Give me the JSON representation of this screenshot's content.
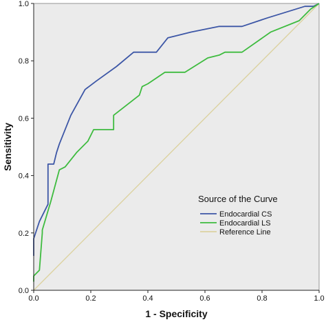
{
  "chart_data": {
    "type": "line",
    "title": "",
    "xlabel": "1 - Specificity",
    "ylabel": "Sensitivity",
    "xlim": [
      0,
      1
    ],
    "ylim": [
      0,
      1
    ],
    "x_ticks": [
      "0.0",
      "0.2",
      "0.4",
      "0.6",
      "0.8",
      "1.0"
    ],
    "y_ticks": [
      "0.0",
      "0.2",
      "0.4",
      "0.6",
      "0.8",
      "1.0"
    ],
    "grid": false,
    "background": "#ebebeb",
    "legend": {
      "title": "Source of the Curve",
      "position": "bottom-right"
    },
    "series": [
      {
        "name": "Endocardial CS",
        "color": "#3c56a6",
        "x": [
          0.0,
          0.0,
          0.02,
          0.05,
          0.05,
          0.07,
          0.08,
          0.09,
          0.13,
          0.18,
          0.22,
          0.29,
          0.35,
          0.43,
          0.47,
          0.55,
          0.65,
          0.73,
          0.82,
          0.95,
          0.98,
          1.0
        ],
        "y": [
          0.12,
          0.18,
          0.24,
          0.3,
          0.44,
          0.44,
          0.48,
          0.51,
          0.61,
          0.7,
          0.73,
          0.78,
          0.83,
          0.83,
          0.88,
          0.9,
          0.92,
          0.92,
          0.95,
          0.99,
          0.99,
          1.0
        ]
      },
      {
        "name": "Endocardial LS",
        "color": "#3dbb3e",
        "x": [
          0.0,
          0.0,
          0.02,
          0.03,
          0.03,
          0.06,
          0.09,
          0.11,
          0.15,
          0.19,
          0.21,
          0.28,
          0.28,
          0.37,
          0.38,
          0.4,
          0.46,
          0.53,
          0.61,
          0.65,
          0.67,
          0.73,
          0.83,
          0.93,
          0.97,
          1.0
        ],
        "y": [
          0.03,
          0.05,
          0.07,
          0.2,
          0.21,
          0.31,
          0.42,
          0.43,
          0.48,
          0.52,
          0.56,
          0.56,
          0.61,
          0.68,
          0.71,
          0.72,
          0.76,
          0.76,
          0.81,
          0.82,
          0.83,
          0.83,
          0.9,
          0.94,
          0.98,
          1.0
        ]
      },
      {
        "name": "Reference Line",
        "color": "#dcd2a0",
        "x": [
          0,
          1
        ],
        "y": [
          0,
          1
        ]
      }
    ]
  }
}
